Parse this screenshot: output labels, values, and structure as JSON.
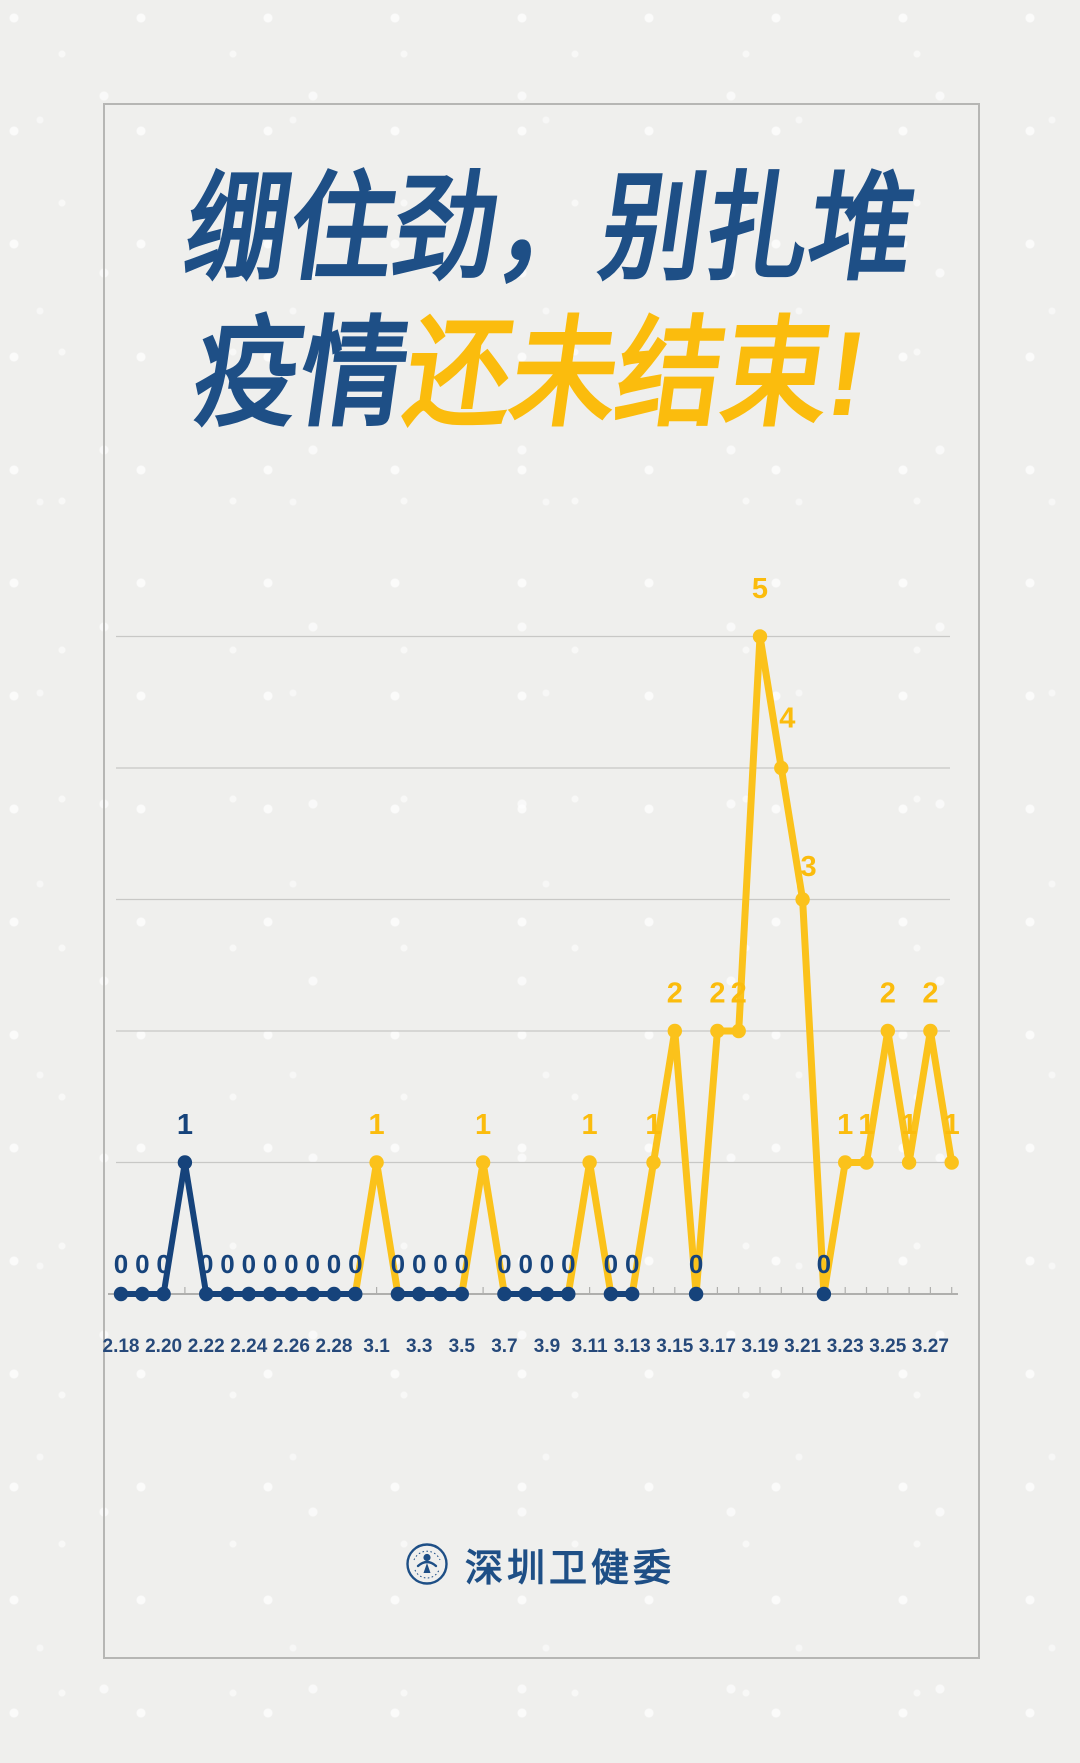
{
  "title": {
    "line1": "绷住劲，别扎堆",
    "line2_blue": "疫情",
    "line2_yellow": "还未结束!"
  },
  "footer": {
    "org_name": "深圳卫健委",
    "logo": "shenzhen-health-commission-seal-icon"
  },
  "colors": {
    "title_navy": "#1E4F86",
    "line_navy": "#16437B",
    "title_yellow": "#FBBC0D",
    "line_yellow": "#FBC21B",
    "grid_gray": "#C8C8C6",
    "axis_gray": "#AFAFAD",
    "tick_label_navy": "#26497A",
    "background": "#EFEFED"
  },
  "chart_data": {
    "type": "line",
    "x": [
      "2.18",
      "2.19",
      "2.20",
      "2.21",
      "2.22",
      "2.23",
      "2.24",
      "2.25",
      "2.26",
      "2.27",
      "2.28",
      "2.29",
      "3.1",
      "3.2",
      "3.3",
      "3.4",
      "3.5",
      "3.6",
      "3.7",
      "3.8",
      "3.9",
      "3.10",
      "3.11",
      "3.12",
      "3.13",
      "3.14",
      "3.15",
      "3.16",
      "3.17",
      "3.18",
      "3.19",
      "3.20",
      "3.21",
      "3.22",
      "3.23",
      "3.24",
      "3.25",
      "3.26",
      "3.27",
      "3.28"
    ],
    "values": [
      0,
      0,
      0,
      1,
      0,
      0,
      0,
      0,
      0,
      0,
      0,
      0,
      1,
      0,
      0,
      0,
      0,
      1,
      0,
      0,
      0,
      0,
      1,
      0,
      0,
      1,
      2,
      0,
      2,
      2,
      5,
      4,
      3,
      0,
      1,
      1,
      2,
      1,
      2,
      1
    ],
    "x_tick_labels": [
      "2.18",
      "2.20",
      "2.22",
      "2.24",
      "2.26",
      "2.28",
      "3.1",
      "3.3",
      "3.5",
      "3.7",
      "3.9",
      "3.11",
      "3.13",
      "3.15",
      "3.17",
      "3.19",
      "3.21",
      "3.23",
      "3.25",
      "3.27"
    ],
    "ylim": [
      0,
      5
    ],
    "gridline_values": [
      1,
      2,
      3,
      4,
      5
    ],
    "grid": "horizontal only",
    "legend": "none",
    "point_labels_shown": true,
    "series": [
      {
        "name": "navy segments",
        "rule": "February points and zero-value runs"
      },
      {
        "name": "yellow segments",
        "rule": "March spikes with non-zero values"
      }
    ]
  }
}
